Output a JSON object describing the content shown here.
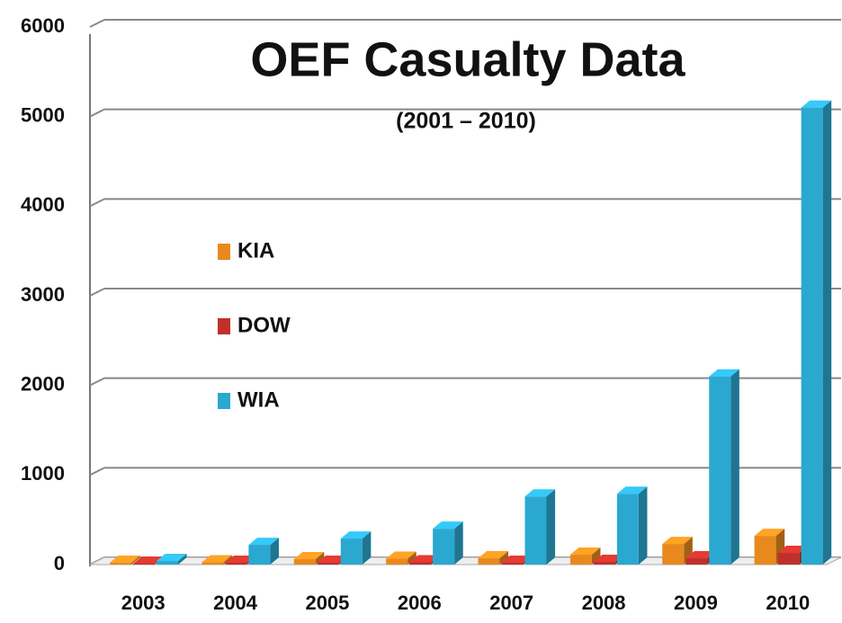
{
  "chart_data": {
    "type": "bar3d",
    "title": "OEF Casualty Data",
    "subtitle": "(2001 – 2010)",
    "categories": [
      "2003",
      "2004",
      "2005",
      "2006",
      "2007",
      "2008",
      "2009",
      "2010"
    ],
    "series": [
      {
        "name": "KIA",
        "color": "#e8891e",
        "values": [
          20,
          25,
          60,
          65,
          70,
          110,
          230,
          320
        ]
      },
      {
        "name": "DOW",
        "color": "#c0302a",
        "values": [
          10,
          20,
          20,
          25,
          20,
          30,
          70,
          130
        ]
      },
      {
        "name": "WIA",
        "color": "#2ba8d0",
        "values": [
          40,
          220,
          290,
          400,
          760,
          790,
          2100,
          5100
        ]
      }
    ],
    "ylim": [
      0,
      6000
    ],
    "yticks": [
      0,
      1000,
      2000,
      3000,
      4000,
      5000,
      6000
    ],
    "grid": true
  }
}
